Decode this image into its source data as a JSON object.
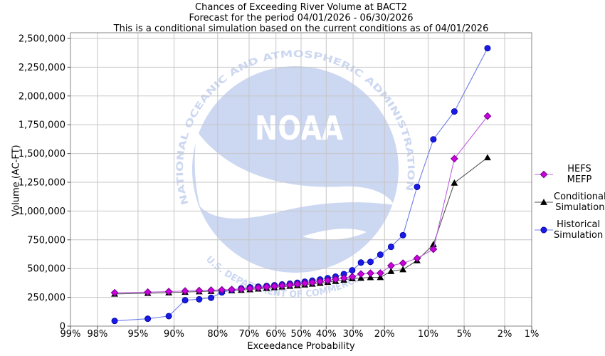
{
  "title": {
    "line1": "Chances of Exceeding River Volume at BACT2",
    "line2": "Forecast for the period 04/01/2026 - 06/30/2026",
    "line3": "This is a conditional simulation based on the current conditions as of 04/01/2026"
  },
  "axes": {
    "x": {
      "title": "Exceedance Probability",
      "ticks": [
        {
          "label": "99%",
          "p": 99
        },
        {
          "label": "98%",
          "p": 98
        },
        {
          "label": "95%",
          "p": 95
        },
        {
          "label": "90%",
          "p": 90
        },
        {
          "label": "80%",
          "p": 80
        },
        {
          "label": "70%",
          "p": 70
        },
        {
          "label": "60%",
          "p": 60
        },
        {
          "label": "50%",
          "p": 50
        },
        {
          "label": "40%",
          "p": 40
        },
        {
          "label": "30%",
          "p": 30
        },
        {
          "label": "20%",
          "p": 20
        },
        {
          "label": "10%",
          "p": 10
        },
        {
          "label": "5%",
          "p": 5
        },
        {
          "label": "2%",
          "p": 2
        },
        {
          "label": "1%",
          "p": 1
        }
      ]
    },
    "y": {
      "title": "Volume (AC-FT)",
      "ticks": [
        {
          "label": "0",
          "v": 0
        },
        {
          "label": "250,000",
          "v": 250000
        },
        {
          "label": "500,000",
          "v": 500000
        },
        {
          "label": "750,000",
          "v": 750000
        },
        {
          "label": "1,000,000",
          "v": 1000000
        },
        {
          "label": "1,250,000",
          "v": 1250000
        },
        {
          "label": "1,500,000",
          "v": 1500000
        },
        {
          "label": "1,750,000",
          "v": 1750000
        },
        {
          "label": "2,000,000",
          "v": 2000000
        },
        {
          "label": "2,250,000",
          "v": 2250000
        },
        {
          "label": "2,500,000",
          "v": 2500000
        }
      ]
    }
  },
  "legend": {
    "items": [
      {
        "name": "hefs-mefp",
        "lines": [
          "HEFS MEFP"
        ],
        "series": 0
      },
      {
        "name": "conditional-simulation",
        "lines": [
          "Conditional",
          "Simulation"
        ],
        "series": 1
      },
      {
        "name": "historical-simulation",
        "lines": [
          "Historical",
          "Simulation"
        ],
        "series": 2
      }
    ]
  },
  "watermark": {
    "ring_text": "NATIONAL OCEANIC AND ATMOSPHERIC ADMINISTRATION",
    "bottom_text": "U.S. DEPARTMENT OF COMMERCE",
    "center_text": "NOAA",
    "color": "#ccd7f1"
  },
  "colors": {
    "grid": "#c6c6c6",
    "frame": "#848484",
    "tick": "#555555",
    "text": "#000000"
  },
  "chart_data": {
    "type": "line",
    "title": "Chances of Exceeding River Volume at BACT2",
    "xlabel": "Exceedance Probability",
    "ylabel": "Volume (AC-FT)",
    "x_scale": "normal-probability",
    "x_range_percent": [
      99,
      1
    ],
    "ylim": [
      0,
      2500000
    ],
    "grid": true,
    "legend_position": "right",
    "probabilities_percent": [
      97.0,
      93.9,
      90.9,
      87.9,
      84.8,
      81.8,
      78.8,
      75.8,
      72.7,
      69.7,
      66.7,
      63.6,
      60.6,
      57.6,
      54.5,
      51.5,
      48.5,
      45.5,
      42.4,
      39.4,
      36.4,
      33.3,
      30.3,
      27.3,
      24.2,
      21.2,
      18.2,
      15.2,
      12.1,
      9.1,
      6.1,
      3.0
    ],
    "series": [
      {
        "name": "HEFS MEFP",
        "marker": "diamond",
        "marker_color": "#cc00dd",
        "marker_edge": "#70008a",
        "line_color": "#c060e0",
        "values": [
          290000,
          295000,
          300000,
          305000,
          309000,
          312000,
          315000,
          318000,
          322000,
          328000,
          334000,
          340000,
          346000,
          352000,
          358000,
          365000,
          372000,
          380000,
          388000,
          397000,
          407000,
          418000,
          429000,
          453000,
          460000,
          461000,
          525000,
          547000,
          589000,
          668000,
          1455000,
          1825000
        ]
      },
      {
        "name": "Conditional Simulation",
        "marker": "triangle",
        "marker_color": "#000000",
        "marker_edge": "#000000",
        "line_color": "#555555",
        "values": [
          280000,
          286000,
          291000,
          296000,
          300000,
          303000,
          306000,
          309000,
          313000,
          318000,
          324000,
          330000,
          336000,
          342000,
          348000,
          354000,
          360000,
          367000,
          374000,
          382000,
          391000,
          401000,
          414000,
          418000,
          423000,
          424000,
          477000,
          492000,
          570000,
          710000,
          1245000,
          1465000
        ]
      },
      {
        "name": "Historical Simulation",
        "marker": "circle",
        "marker_color": "#1a1ae6",
        "marker_edge": "#0000a0",
        "line_color": "#6c7ce8",
        "values": [
          45000,
          64000,
          87000,
          225000,
          233000,
          246000,
          293000,
          314000,
          328000,
          337000,
          343000,
          349000,
          355000,
          362000,
          369000,
          377000,
          386000,
          395000,
          405000,
          416000,
          430000,
          452000,
          485000,
          552000,
          558000,
          621000,
          689000,
          790000,
          1210000,
          1623000,
          1865000,
          2415000
        ]
      }
    ]
  }
}
